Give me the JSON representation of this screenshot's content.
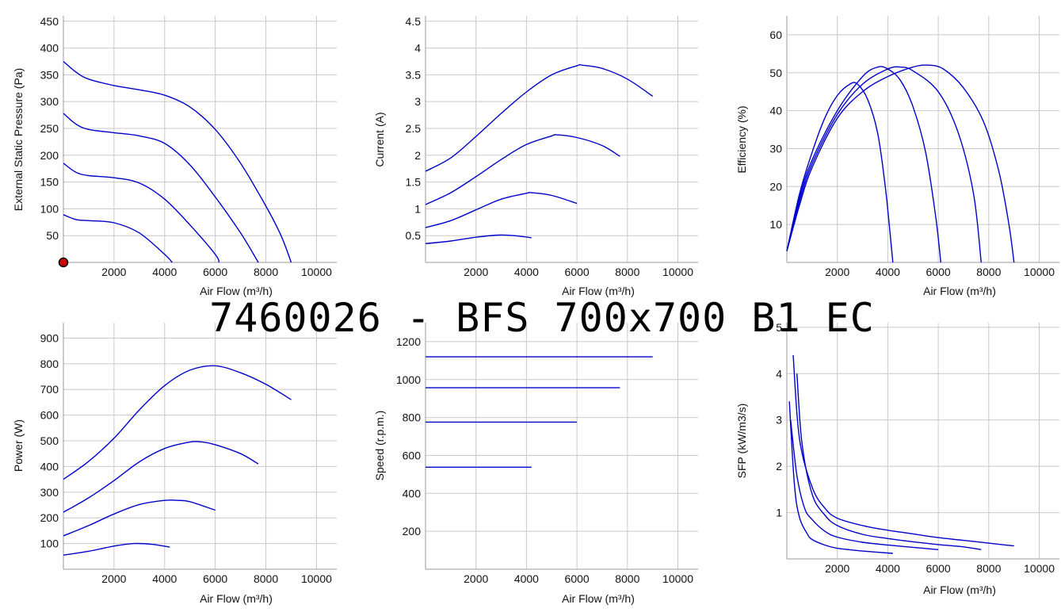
{
  "title": "7460026 -  BFS 700x700 B1 EC",
  "colors": {
    "curve": "#0000cc",
    "grid": "#c8c8c8",
    "marker": "#cc0000"
  },
  "chart_data": [
    {
      "type": "line",
      "ylabel": "External Static Pressure (Pa)",
      "xlabel": "Air Flow (m³/h)",
      "xlim": [
        0,
        10800
      ],
      "ylim": [
        0,
        460
      ],
      "xticks": [
        2000,
        4000,
        6000,
        8000,
        10000
      ],
      "yticks": [
        50,
        100,
        150,
        200,
        250,
        300,
        350,
        400,
        450
      ],
      "marker": {
        "x": 0,
        "y": 0
      },
      "series": [
        {
          "points": [
            [
              0,
              375
            ],
            [
              500,
              355
            ],
            [
              1000,
              342
            ],
            [
              2000,
              330
            ],
            [
              3000,
              322
            ],
            [
              4000,
              312
            ],
            [
              5000,
              290
            ],
            [
              6000,
              248
            ],
            [
              7000,
              185
            ],
            [
              8000,
              105
            ],
            [
              8600,
              50
            ],
            [
              9000,
              0
            ]
          ]
        },
        {
          "points": [
            [
              0,
              278
            ],
            [
              500,
              258
            ],
            [
              1000,
              248
            ],
            [
              2000,
              242
            ],
            [
              3000,
              236
            ],
            [
              4000,
              222
            ],
            [
              5000,
              182
            ],
            [
              6000,
              122
            ],
            [
              7000,
              55
            ],
            [
              7700,
              0
            ]
          ]
        },
        {
          "points": [
            [
              0,
              185
            ],
            [
              500,
              168
            ],
            [
              1000,
              162
            ],
            [
              2000,
              158
            ],
            [
              3000,
              148
            ],
            [
              4000,
              118
            ],
            [
              5000,
              70
            ],
            [
              6000,
              15
            ],
            [
              6150,
              0
            ]
          ]
        },
        {
          "points": [
            [
              0,
              89
            ],
            [
              500,
              80
            ],
            [
              1000,
              78
            ],
            [
              2000,
              74
            ],
            [
              3000,
              55
            ],
            [
              4000,
              15
            ],
            [
              4300,
              0
            ]
          ]
        }
      ]
    },
    {
      "type": "line",
      "ylabel": "Current (A)",
      "xlabel": "Air Flow (m³/h)",
      "xlim": [
        0,
        10800
      ],
      "ylim": [
        0,
        4.6
      ],
      "xticks": [
        2000,
        4000,
        6000,
        8000,
        10000
      ],
      "yticks": [
        0.5,
        1,
        1.5,
        2,
        2.5,
        3,
        3.5,
        4,
        4.5
      ],
      "series": [
        {
          "points": [
            [
              0,
              1.7
            ],
            [
              1000,
              1.95
            ],
            [
              2000,
              2.35
            ],
            [
              3000,
              2.78
            ],
            [
              4000,
              3.18
            ],
            [
              5000,
              3.5
            ],
            [
              6000,
              3.67
            ],
            [
              6200,
              3.68
            ],
            [
              7000,
              3.62
            ],
            [
              8000,
              3.42
            ],
            [
              9000,
              3.1
            ]
          ]
        },
        {
          "points": [
            [
              0,
              1.08
            ],
            [
              1000,
              1.3
            ],
            [
              2000,
              1.6
            ],
            [
              3000,
              1.92
            ],
            [
              4000,
              2.2
            ],
            [
              5000,
              2.36
            ],
            [
              5200,
              2.38
            ],
            [
              6000,
              2.33
            ],
            [
              7000,
              2.18
            ],
            [
              7700,
              1.98
            ]
          ]
        },
        {
          "points": [
            [
              0,
              0.65
            ],
            [
              1000,
              0.78
            ],
            [
              2000,
              0.98
            ],
            [
              3000,
              1.18
            ],
            [
              4000,
              1.29
            ],
            [
              4200,
              1.3
            ],
            [
              5000,
              1.25
            ],
            [
              6000,
              1.1
            ]
          ]
        },
        {
          "points": [
            [
              0,
              0.35
            ],
            [
              1000,
              0.4
            ],
            [
              2000,
              0.47
            ],
            [
              2900,
              0.51
            ],
            [
              3500,
              0.5
            ],
            [
              4200,
              0.46
            ]
          ]
        }
      ]
    },
    {
      "type": "line",
      "ylabel": "Efficiency (%)",
      "xlabel": "Air Flow (m³/h)",
      "xlim": [
        0,
        10800
      ],
      "ylim": [
        0,
        65
      ],
      "xticks": [
        2000,
        4000,
        6000,
        8000,
        10000
      ],
      "yticks": [
        10,
        20,
        30,
        40,
        50,
        60
      ],
      "series": [
        {
          "points": [
            [
              0,
              3
            ],
            [
              500,
              18
            ],
            [
              1000,
              29
            ],
            [
              1500,
              38
            ],
            [
              2000,
              44
            ],
            [
              2500,
              47
            ],
            [
              2800,
              47
            ],
            [
              3200,
              43
            ],
            [
              3600,
              34
            ],
            [
              3900,
              20
            ],
            [
              4100,
              7
            ],
            [
              4200,
              0
            ]
          ]
        },
        {
          "points": [
            [
              0,
              3
            ],
            [
              500,
              17
            ],
            [
              1000,
              27
            ],
            [
              2000,
              40
            ],
            [
              3000,
              49
            ],
            [
              3600,
              51.5
            ],
            [
              4000,
              51
            ],
            [
              4500,
              48
            ],
            [
              5000,
              41
            ],
            [
              5500,
              29
            ],
            [
              5900,
              12
            ],
            [
              6100,
              0
            ]
          ]
        },
        {
          "points": [
            [
              0,
              3
            ],
            [
              500,
              16
            ],
            [
              1000,
              26
            ],
            [
              2000,
              39
            ],
            [
              3000,
              47
            ],
            [
              4000,
              51
            ],
            [
              4500,
              51.5
            ],
            [
              5000,
              50.5
            ],
            [
              6000,
              45
            ],
            [
              6800,
              34
            ],
            [
              7400,
              18
            ],
            [
              7700,
              0
            ]
          ]
        },
        {
          "points": [
            [
              0,
              3
            ],
            [
              500,
              15
            ],
            [
              1000,
              25
            ],
            [
              2000,
              38
            ],
            [
              3000,
              45
            ],
            [
              4000,
              49
            ],
            [
              5000,
              51.5
            ],
            [
              5600,
              52
            ],
            [
              6200,
              51
            ],
            [
              7000,
              46
            ],
            [
              7800,
              37
            ],
            [
              8400,
              24
            ],
            [
              8800,
              10
            ],
            [
              9000,
              0
            ]
          ]
        }
      ]
    },
    {
      "type": "line",
      "ylabel": "Power (W)",
      "xlabel": "Air Flow (m³/h)",
      "xlim": [
        0,
        10800
      ],
      "ylim": [
        0,
        960
      ],
      "xticks": [
        2000,
        4000,
        6000,
        8000,
        10000
      ],
      "yticks": [
        100,
        200,
        300,
        400,
        500,
        600,
        700,
        800,
        900
      ],
      "series": [
        {
          "points": [
            [
              0,
              350
            ],
            [
              1000,
              420
            ],
            [
              2000,
              510
            ],
            [
              3000,
              620
            ],
            [
              4000,
              715
            ],
            [
              5000,
              775
            ],
            [
              6000,
              792
            ],
            [
              7000,
              765
            ],
            [
              8000,
              720
            ],
            [
              9000,
              660
            ]
          ]
        },
        {
          "points": [
            [
              0,
              222
            ],
            [
              1000,
              278
            ],
            [
              2000,
              345
            ],
            [
              3000,
              418
            ],
            [
              4000,
              470
            ],
            [
              5000,
              495
            ],
            [
              5500,
              495
            ],
            [
              6000,
              485
            ],
            [
              7000,
              450
            ],
            [
              7700,
              410
            ]
          ]
        },
        {
          "points": [
            [
              0,
              130
            ],
            [
              1000,
              170
            ],
            [
              2000,
              215
            ],
            [
              3000,
              252
            ],
            [
              4000,
              268
            ],
            [
              4500,
              268
            ],
            [
              5000,
              263
            ],
            [
              6000,
              230
            ]
          ]
        },
        {
          "points": [
            [
              0,
              55
            ],
            [
              1000,
              70
            ],
            [
              2000,
              90
            ],
            [
              2800,
              100
            ],
            [
              3500,
              97
            ],
            [
              4200,
              86
            ]
          ]
        }
      ]
    },
    {
      "type": "line",
      "ylabel": "Speed (r.p.m.)",
      "xlabel": "Air Flow (m³/h)",
      "xlim": [
        0,
        10800
      ],
      "ylim": [
        0,
        1300
      ],
      "xticks": [
        2000,
        4000,
        6000,
        8000,
        10000
      ],
      "yticks": [
        200,
        400,
        600,
        800,
        1000,
        1200
      ],
      "series": [
        {
          "points": [
            [
              0,
              1120
            ],
            [
              9000,
              1120
            ]
          ]
        },
        {
          "points": [
            [
              0,
              957
            ],
            [
              7700,
              957
            ]
          ]
        },
        {
          "points": [
            [
              0,
              776
            ],
            [
              6000,
              776
            ]
          ]
        },
        {
          "points": [
            [
              0,
              538
            ],
            [
              4200,
              538
            ]
          ]
        }
      ]
    },
    {
      "type": "line",
      "ylabel": "SFP (kW/m3/s)",
      "xlabel": "Air Flow (m³/h)",
      "xlim": [
        0,
        10800
      ],
      "ylim": [
        0,
        5.1
      ],
      "xticks": [
        2000,
        4000,
        6000,
        8000,
        10000
      ],
      "yticks": [
        1,
        2,
        3,
        4,
        5
      ],
      "series": [
        {
          "points": [
            [
              250,
              4.4
            ],
            [
              500,
              2.6
            ],
            [
              1000,
              1.55
            ],
            [
              1500,
              1.1
            ],
            [
              2000,
              0.88
            ],
            [
              3000,
              0.72
            ],
            [
              4000,
              0.62
            ],
            [
              5000,
              0.54
            ],
            [
              6000,
              0.46
            ],
            [
              7000,
              0.4
            ],
            [
              8000,
              0.34
            ],
            [
              9000,
              0.28
            ]
          ]
        },
        {
          "points": [
            [
              400,
              4.0
            ],
            [
              600,
              2.5
            ],
            [
              1000,
              1.4
            ],
            [
              1500,
              0.95
            ],
            [
              2000,
              0.72
            ],
            [
              3000,
              0.53
            ],
            [
              4000,
              0.44
            ],
            [
              5000,
              0.37
            ],
            [
              6000,
              0.31
            ],
            [
              7000,
              0.26
            ],
            [
              7700,
              0.2
            ]
          ]
        },
        {
          "points": [
            [
              150,
              3.0
            ],
            [
              400,
              1.8
            ],
            [
              700,
              1.1
            ],
            [
              1000,
              0.85
            ],
            [
              1500,
              0.6
            ],
            [
              2000,
              0.47
            ],
            [
              3000,
              0.36
            ],
            [
              4000,
              0.3
            ],
            [
              5000,
              0.25
            ],
            [
              6000,
              0.2
            ]
          ]
        },
        {
          "points": [
            [
              100,
              3.4
            ],
            [
              300,
              1.6
            ],
            [
              500,
              0.9
            ],
            [
              800,
              0.55
            ],
            [
              1000,
              0.42
            ],
            [
              1500,
              0.3
            ],
            [
              2000,
              0.23
            ],
            [
              3000,
              0.17
            ],
            [
              4200,
              0.12
            ]
          ]
        }
      ]
    }
  ]
}
